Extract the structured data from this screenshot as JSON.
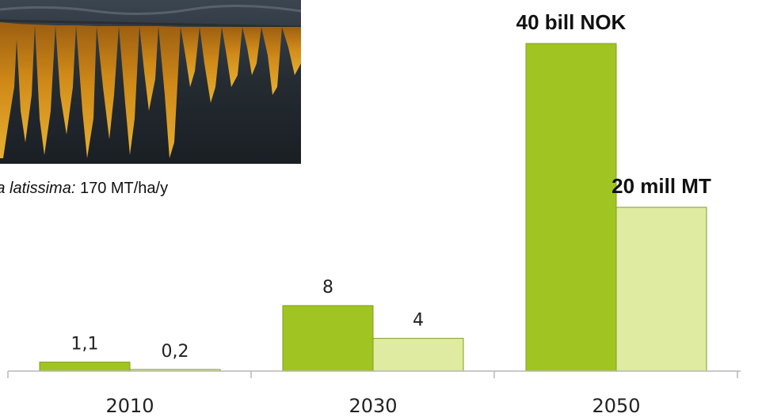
{
  "caption": {
    "species": "arina latissima:",
    "yield": " 170 MT/ha/y"
  },
  "colors": {
    "value_series": "#a0c421",
    "volume_series": "#deeba0",
    "bar_stroke": "#7f9e23",
    "axis": "#b7b7b7"
  },
  "chart_data": {
    "type": "bar",
    "categories": [
      "2010",
      "2030",
      "2050"
    ],
    "series": [
      {
        "values": [
          1.1,
          8,
          40
        ],
        "labels": [
          "1,1",
          "8",
          "40  bill NOK"
        ]
      },
      {
        "values": [
          0.2,
          4,
          20
        ],
        "labels": [
          "0,2",
          "4",
          "20  mill MT"
        ]
      }
    ],
    "ylim": [
      0,
      40
    ],
    "grid": false,
    "xlabel": "",
    "ylabel": ""
  }
}
